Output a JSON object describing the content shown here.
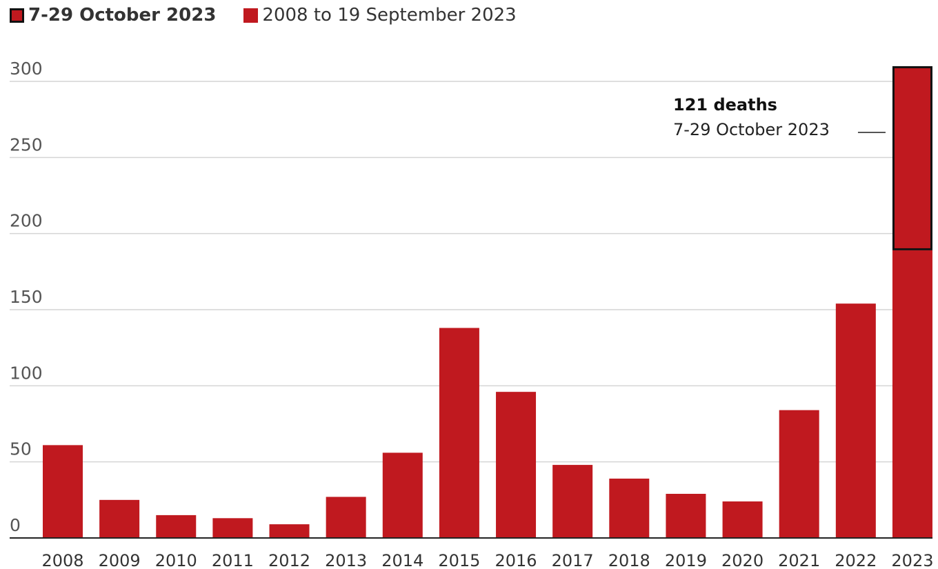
{
  "chart_data": {
    "type": "bar",
    "stacked": true,
    "legend": {
      "position": "top-left",
      "items": [
        {
          "label": "7-29 October 2023",
          "style": "outlined",
          "color": "#c0191f"
        },
        {
          "label": "2008 to 19 September 2023",
          "style": "solid",
          "color": "#c0191f"
        }
      ]
    },
    "categories": [
      "2008",
      "2009",
      "2010",
      "2011",
      "2012",
      "2013",
      "2014",
      "2015",
      "2016",
      "2017",
      "2018",
      "2019",
      "2020",
      "2021",
      "2022",
      "2023"
    ],
    "series": [
      {
        "name": "2008 to 19 September 2023",
        "color": "#c0191f",
        "values": [
          61,
          25,
          15,
          13,
          9,
          27,
          56,
          138,
          96,
          48,
          39,
          29,
          24,
          84,
          154,
          189
        ]
      },
      {
        "name": "7-29 October 2023",
        "color": "#c0191f",
        "outline": "#111111",
        "values": [
          0,
          0,
          0,
          0,
          0,
          0,
          0,
          0,
          0,
          0,
          0,
          0,
          0,
          0,
          0,
          121
        ]
      }
    ],
    "y_ticks": [
      0,
      50,
      100,
      150,
      200,
      250,
      300
    ],
    "ylim": [
      0,
      300
    ],
    "grid": true,
    "annotation": {
      "title": "121 deaths",
      "subtitle": "7-29 October 2023",
      "category": "2023"
    }
  }
}
